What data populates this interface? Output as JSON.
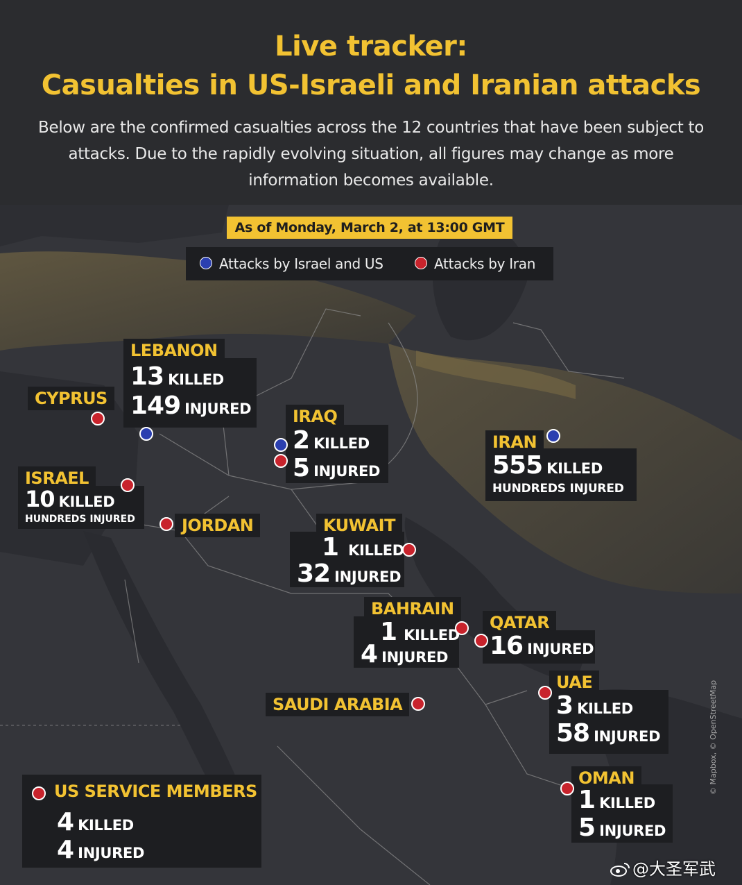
{
  "header": {
    "title_line1": "Live tracker:",
    "title_line2": "Casualties in US-Israeli and Iranian attacks",
    "subtitle": "Below are the confirmed casualties across the 12 countries that have been subject to attacks. Due to the rapidly evolving situation, all figures may change as more information becomes available."
  },
  "date_badge": "As of Monday, March 2, at 13:00 GMT",
  "legend": {
    "blue_label": "Attacks by Israel and US",
    "red_label": "Attacks by Iran",
    "blue_color": "#2b3fb0",
    "red_color": "#c8232c"
  },
  "countries": {
    "lebanon": {
      "name": "LEBANON",
      "killed_num": "13",
      "killed_word": "KILLED",
      "injured_num": "149",
      "injured_word": "INJURED"
    },
    "cyprus": {
      "name": "CYPRUS"
    },
    "iraq": {
      "name": "IRAQ",
      "killed_num": "2",
      "killed_word": "KILLED",
      "injured_num": "5",
      "injured_word": "INJURED"
    },
    "iran": {
      "name": "IRAN",
      "killed_num": "555",
      "killed_word": "KILLED",
      "injured_text": "HUNDREDS INJURED"
    },
    "israel": {
      "name": "ISRAEL",
      "killed_num": "10",
      "killed_word": "KILLED",
      "injured_text": "HUNDREDS INJURED"
    },
    "jordan": {
      "name": "JORDAN"
    },
    "kuwait": {
      "name": "KUWAIT",
      "killed_num": "1",
      "killed_word": "KILLED",
      "injured_num": "32",
      "injured_word": "INJURED"
    },
    "bahrain": {
      "name": "BAHRAIN",
      "killed_num": "1",
      "killed_word": "KILLED",
      "injured_num": "4",
      "injured_word": "INJURED"
    },
    "qatar": {
      "name": "QATAR",
      "injured_num": "16",
      "injured_word": "INJURED"
    },
    "uae": {
      "name": "UAE",
      "killed_num": "3",
      "killed_word": "KILLED",
      "injured_num": "58",
      "injured_word": "INJURED"
    },
    "saudi": {
      "name": "SAUDI ARABIA"
    },
    "oman": {
      "name": "OMAN",
      "killed_num": "1",
      "killed_word": "KILLED",
      "injured_num": "5",
      "injured_word": "INJURED"
    },
    "us": {
      "name": "US SERVICE MEMBERS",
      "killed_num": "4",
      "killed_word": "KILLED",
      "injured_num": "4",
      "injured_word": "INJURED"
    }
  },
  "credit": "© Mapbox, © OpenStreetMap",
  "watermark": "@大圣军武"
}
